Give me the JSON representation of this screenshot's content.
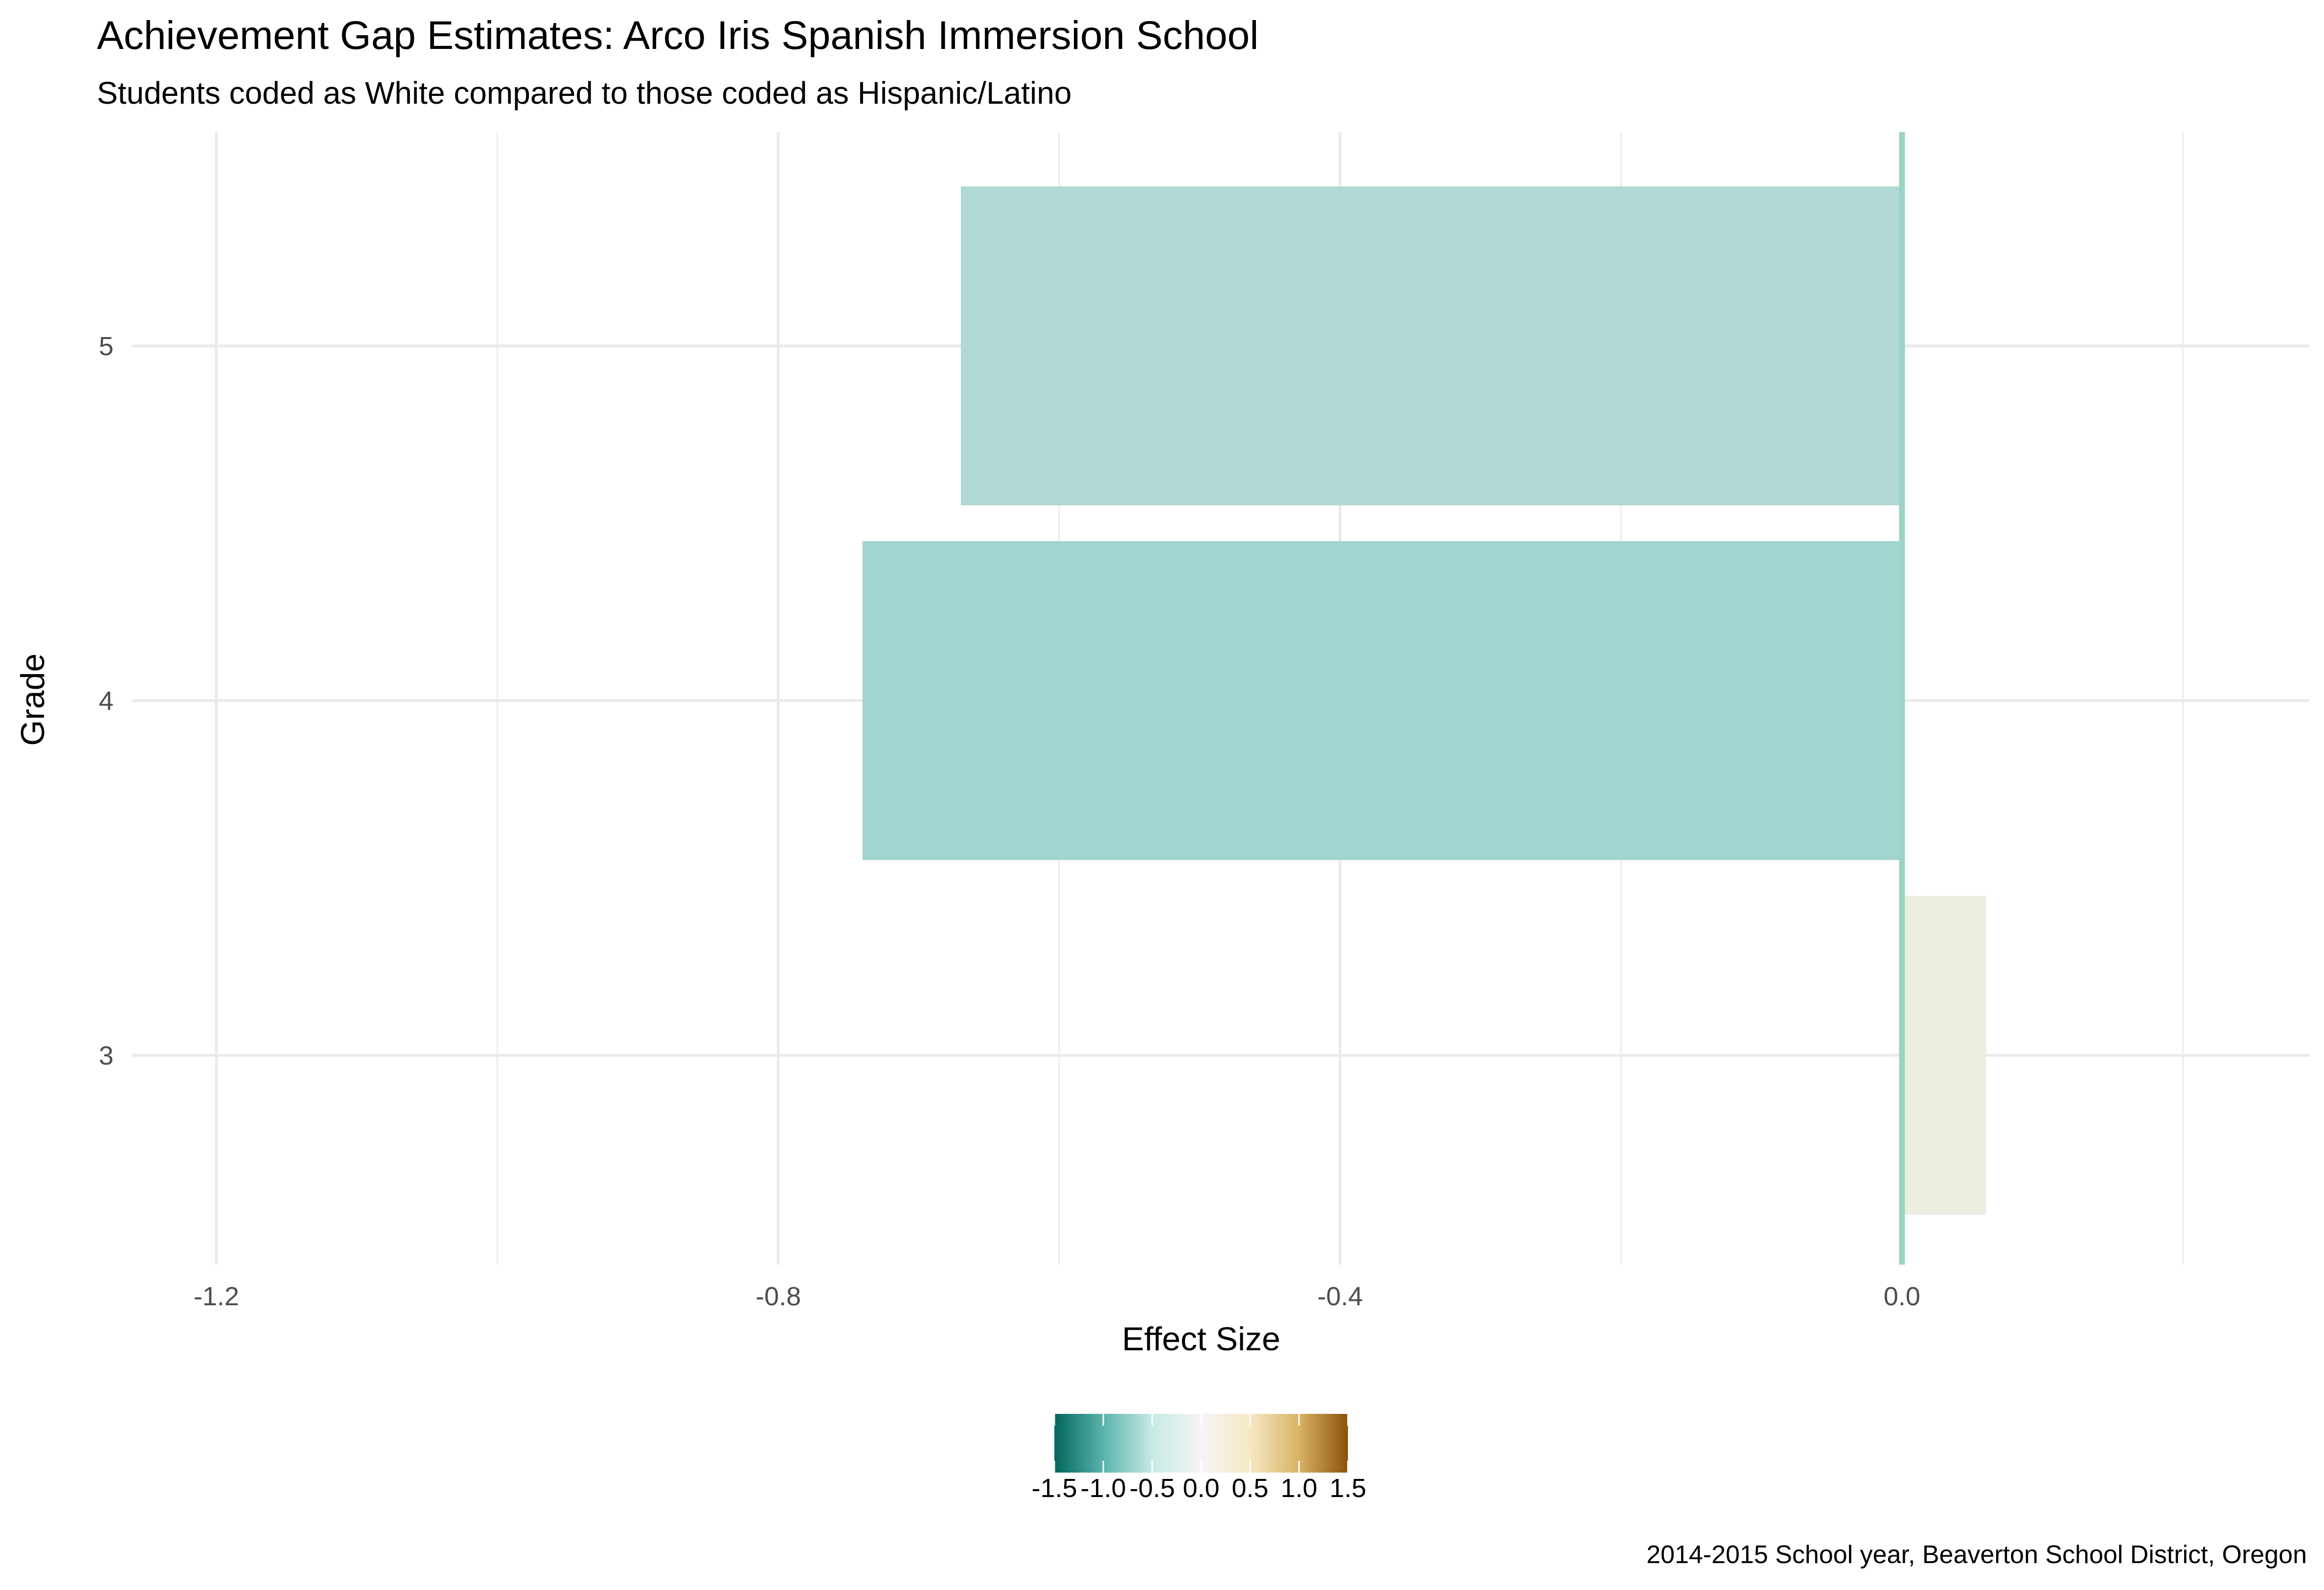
{
  "chart_data": {
    "type": "bar",
    "orientation": "horizontal",
    "title": "Achievement Gap Estimates: Arco Iris Spanish Immersion School",
    "subtitle": "Students coded as White compared to those coded as Hispanic/Latino",
    "caption": "2014-2015 School year, Beaverton School District, Oregon",
    "xlabel": "Effect Size",
    "ylabel": "Grade",
    "xlim": [
      -1.2,
      0.2
    ],
    "x_ticks": [
      "-1.2",
      "-0.8",
      "-0.4",
      "0.0"
    ],
    "categories": [
      "3",
      "4",
      "5"
    ],
    "values": [
      0.06,
      -0.74,
      -0.67
    ],
    "bar_colors": [
      "#eceee0",
      "#a2d5cf",
      "#b0d9d5"
    ],
    "zero_line_color": "#9dd3c6",
    "grid": true,
    "legend": {
      "position": "bottom",
      "type": "colorbar",
      "range": [
        -1.5,
        1.5
      ],
      "tick_labels": [
        "-1.5",
        "-1.0",
        "-0.5",
        "0.0",
        "0.5",
        "1.0",
        "1.5"
      ],
      "colors": [
        "#01665e",
        "#5ab4ac",
        "#c7eae5",
        "#f5f5f5",
        "#f6e8c3",
        "#d8b365",
        "#8c510a"
      ]
    }
  }
}
